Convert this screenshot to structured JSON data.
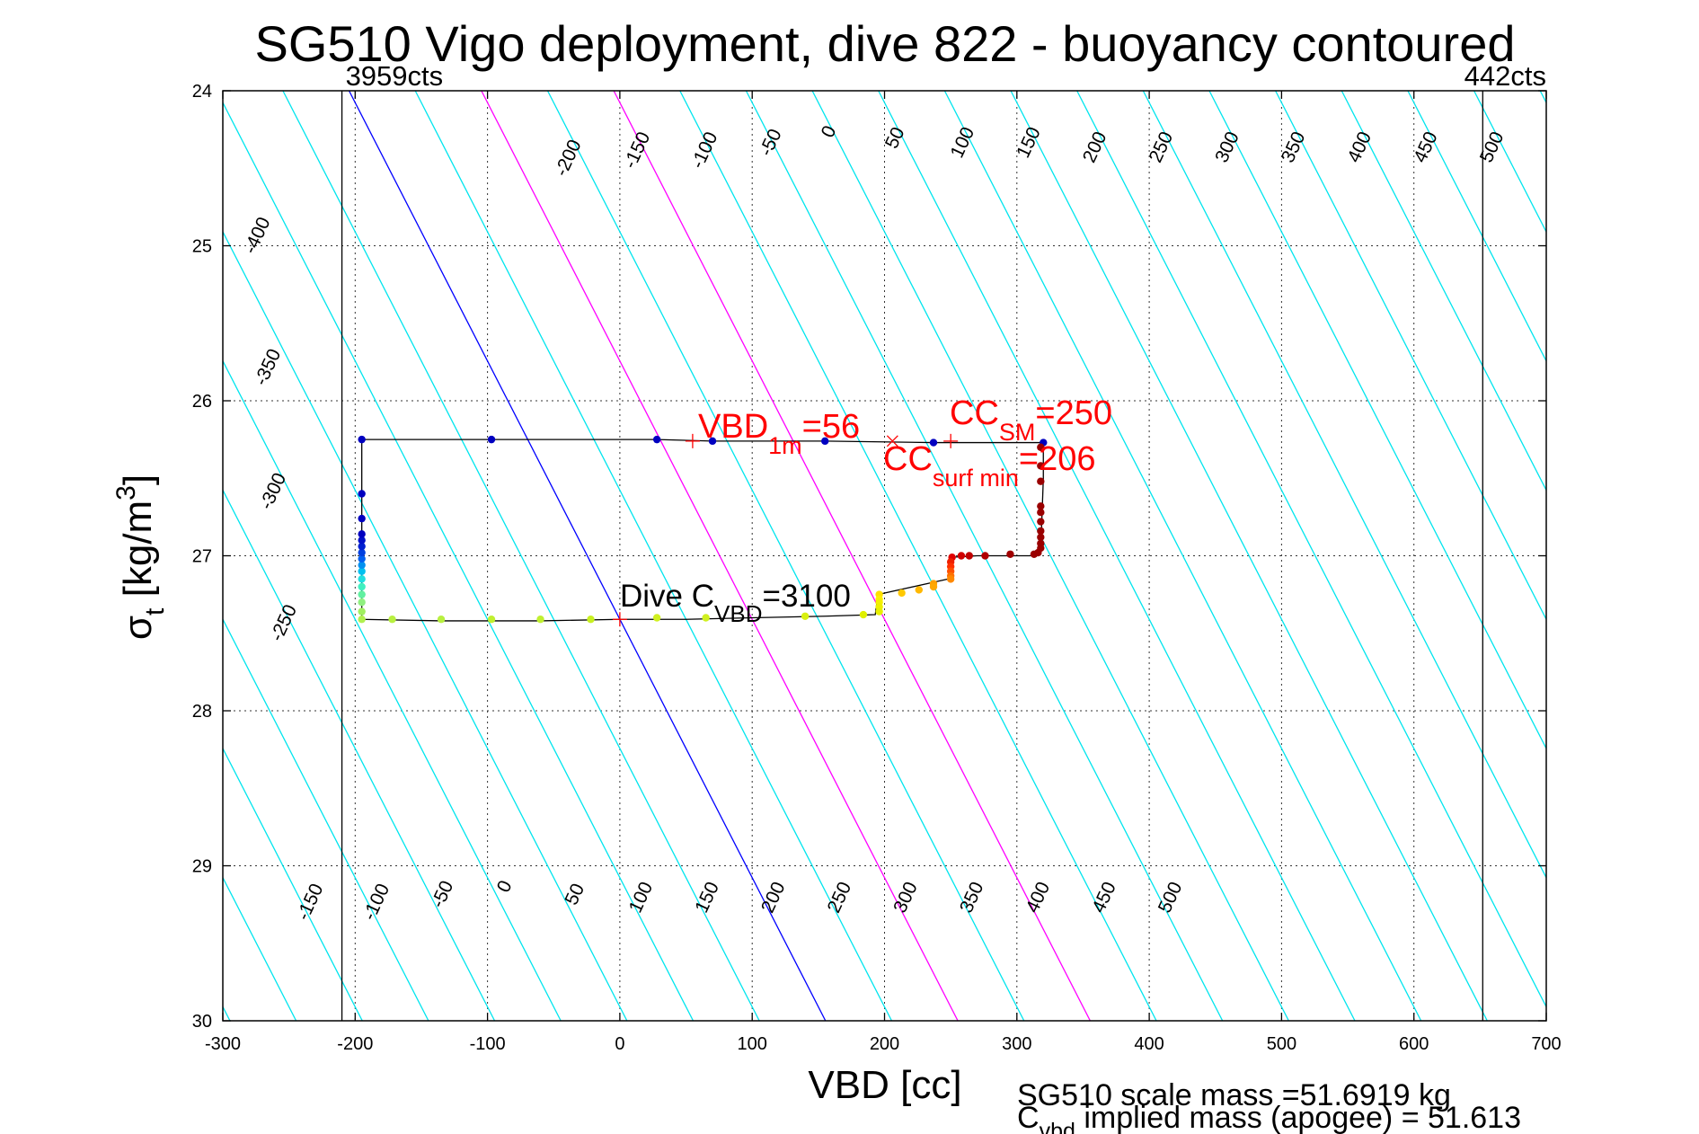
{
  "chart_data": {
    "type": "scatter",
    "title": "SG510 Vigo deployment, dive 822 - buoyancy contoured",
    "xlabel": "VBD [cc]",
    "ylabel_main": "σ",
    "ylabel_sub": "t",
    "ylabel_rest": " [kg/m",
    "ylabel_sup": "3",
    "ylabel_close": "]",
    "xlim": [
      -300,
      700
    ],
    "ylim": [
      24,
      30
    ],
    "y_reversed": true,
    "grid": true,
    "xticks": [
      -300,
      -200,
      -100,
      0,
      100,
      200,
      300,
      400,
      500,
      600,
      700
    ],
    "yticks": [
      24,
      25,
      26,
      27,
      28,
      29,
      30
    ],
    "contour_slope_cc_per_sigma": 60,
    "contours": {
      "levels": [
        -450,
        -400,
        -350,
        -300,
        -250,
        -200,
        -150,
        -100,
        -50,
        0,
        50,
        100,
        150,
        200,
        250,
        300,
        350,
        400,
        450,
        500,
        550,
        600,
        650,
        700,
        750,
        800,
        850,
        900,
        950,
        1000
      ],
      "zero_level_color": "#0000ff",
      "highlight_levels": [
        100,
        200
      ],
      "highlight_color": "#ff00ff",
      "default_color": "#00e5ee",
      "top_labels": [
        {
          "text": "-200",
          "x": -35,
          "y": 24.45
        },
        {
          "text": "-150",
          "x": 17,
          "y": 24.4
        },
        {
          "text": "-100",
          "x": 68,
          "y": 24.4
        },
        {
          "text": "-50",
          "x": 118,
          "y": 24.35
        },
        {
          "text": "0",
          "x": 162,
          "y": 24.28
        },
        {
          "text": "50",
          "x": 212,
          "y": 24.32
        },
        {
          "text": "100",
          "x": 263,
          "y": 24.35
        },
        {
          "text": "150",
          "x": 313,
          "y": 24.35
        },
        {
          "text": "200",
          "x": 363,
          "y": 24.38
        },
        {
          "text": "250",
          "x": 413,
          "y": 24.38
        },
        {
          "text": "300",
          "x": 463,
          "y": 24.38
        },
        {
          "text": "350",
          "x": 513,
          "y": 24.38
        },
        {
          "text": "400",
          "x": 563,
          "y": 24.38
        },
        {
          "text": "450",
          "x": 613,
          "y": 24.38
        },
        {
          "text": "500",
          "x": 663,
          "y": 24.38
        }
      ],
      "left_labels": [
        {
          "text": "-400",
          "x": -270,
          "y": 24.95
        },
        {
          "text": "-350",
          "x": -262,
          "y": 25.8
        },
        {
          "text": "-300",
          "x": -258,
          "y": 26.6
        },
        {
          "text": "-250",
          "x": -250,
          "y": 27.45
        }
      ],
      "bottom_labels": [
        {
          "text": "-150",
          "x": -230,
          "y": 29.25
        },
        {
          "text": "-100",
          "x": -180,
          "y": 29.25
        },
        {
          "text": "-50",
          "x": -130,
          "y": 29.2
        },
        {
          "text": "0",
          "x": -83,
          "y": 29.15
        },
        {
          "text": "50",
          "x": -30,
          "y": 29.2
        },
        {
          "text": "100",
          "x": 20,
          "y": 29.22
        },
        {
          "text": "150",
          "x": 70,
          "y": 29.22
        },
        {
          "text": "200",
          "x": 120,
          "y": 29.22
        },
        {
          "text": "250",
          "x": 170,
          "y": 29.22
        },
        {
          "text": "300",
          "x": 220,
          "y": 29.22
        },
        {
          "text": "350",
          "x": 270,
          "y": 29.22
        },
        {
          "text": "400",
          "x": 320,
          "y": 29.22
        },
        {
          "text": "450",
          "x": 370,
          "y": 29.22
        },
        {
          "text": "500",
          "x": 420,
          "y": 29.22
        }
      ]
    },
    "vertical_lines": [
      {
        "x": -210,
        "label": "3959cts",
        "label_x": -210,
        "label_anchor": "start"
      },
      {
        "x": 652,
        "label": "442cts",
        "label_x": 700,
        "label_anchor": "end"
      }
    ],
    "path": [
      [
        -195,
        26.25
      ],
      [
        -97,
        26.25
      ],
      [
        28,
        26.25
      ],
      [
        70,
        26.26
      ],
      [
        155,
        26.26
      ],
      [
        237,
        26.27
      ],
      [
        320,
        26.27
      ],
      [
        320,
        26.5
      ],
      [
        318,
        26.97
      ],
      [
        310,
        27.0
      ],
      [
        290,
        27.0
      ],
      [
        270,
        27.0
      ],
      [
        250,
        27.01
      ],
      [
        248,
        27.15
      ],
      [
        195,
        27.25
      ],
      [
        193,
        27.38
      ],
      [
        155,
        27.39
      ],
      [
        100,
        27.4
      ],
      [
        50,
        27.41
      ],
      [
        0,
        27.41
      ],
      [
        -60,
        27.42
      ],
      [
        -135,
        27.42
      ],
      [
        -195,
        27.41
      ],
      [
        -195,
        27.2
      ],
      [
        -195,
        26.9
      ],
      [
        -195,
        26.25
      ]
    ],
    "points": [
      {
        "x": -195,
        "y": 26.25,
        "c": "#0000c0"
      },
      {
        "x": -97,
        "y": 26.25,
        "c": "#0000c0"
      },
      {
        "x": 28,
        "y": 26.25,
        "c": "#0000c0"
      },
      {
        "x": 70,
        "y": 26.26,
        "c": "#0000c0"
      },
      {
        "x": 155,
        "y": 26.26,
        "c": "#0000c0"
      },
      {
        "x": 237,
        "y": 26.27,
        "c": "#0000c0"
      },
      {
        "x": 320,
        "y": 26.27,
        "c": "#0000c0"
      },
      {
        "x": 318,
        "y": 26.3,
        "c": "#9a0000"
      },
      {
        "x": 318,
        "y": 26.42,
        "c": "#9a0000"
      },
      {
        "x": 318,
        "y": 26.52,
        "c": "#9a0000"
      },
      {
        "x": 318,
        "y": 26.68,
        "c": "#9a0000"
      },
      {
        "x": 318,
        "y": 26.72,
        "c": "#9a0000"
      },
      {
        "x": 318,
        "y": 26.78,
        "c": "#9a0000"
      },
      {
        "x": 318,
        "y": 26.84,
        "c": "#9a0000"
      },
      {
        "x": 318,
        "y": 26.88,
        "c": "#9a0000"
      },
      {
        "x": 318,
        "y": 26.92,
        "c": "#9a0000"
      },
      {
        "x": 318,
        "y": 26.95,
        "c": "#9a0000"
      },
      {
        "x": 316,
        "y": 26.98,
        "c": "#9a0000"
      },
      {
        "x": 313,
        "y": 26.99,
        "c": "#9a0000"
      },
      {
        "x": 295,
        "y": 26.99,
        "c": "#a00000"
      },
      {
        "x": 276,
        "y": 27.0,
        "c": "#b00000"
      },
      {
        "x": 264,
        "y": 27.0,
        "c": "#c00000"
      },
      {
        "x": 258,
        "y": 27.0,
        "c": "#d00000"
      },
      {
        "x": 251,
        "y": 27.01,
        "c": "#e00000"
      },
      {
        "x": 250,
        "y": 27.04,
        "c": "#ee2000"
      },
      {
        "x": 250,
        "y": 27.07,
        "c": "#ff3000"
      },
      {
        "x": 250,
        "y": 27.1,
        "c": "#ff5000"
      },
      {
        "x": 250,
        "y": 27.13,
        "c": "#ff7000"
      },
      {
        "x": 250,
        "y": 27.15,
        "c": "#ff8800"
      },
      {
        "x": 237,
        "y": 27.18,
        "c": "#ffa000"
      },
      {
        "x": 237,
        "y": 27.2,
        "c": "#ffa800"
      },
      {
        "x": 226,
        "y": 27.22,
        "c": "#ffb800"
      },
      {
        "x": 213,
        "y": 27.24,
        "c": "#ffc800"
      },
      {
        "x": 196,
        "y": 27.25,
        "c": "#ffe000"
      },
      {
        "x": 196,
        "y": 27.28,
        "c": "#ffee00"
      },
      {
        "x": 196,
        "y": 27.3,
        "c": "#f4f000"
      },
      {
        "x": 196,
        "y": 27.33,
        "c": "#eef000"
      },
      {
        "x": 196,
        "y": 27.36,
        "c": "#e8f000"
      },
      {
        "x": 184,
        "y": 27.38,
        "c": "#e0f000"
      },
      {
        "x": 140,
        "y": 27.39,
        "c": "#d8f010"
      },
      {
        "x": 65,
        "y": 27.4,
        "c": "#d0f020"
      },
      {
        "x": 28,
        "y": 27.4,
        "c": "#d0f020"
      },
      {
        "x": -22,
        "y": 27.41,
        "c": "#c8f020"
      },
      {
        "x": -60,
        "y": 27.41,
        "c": "#c0f030"
      },
      {
        "x": -97,
        "y": 27.41,
        "c": "#c0f030"
      },
      {
        "x": -135,
        "y": 27.41,
        "c": "#b8f040"
      },
      {
        "x": -172,
        "y": 27.41,
        "c": "#b8f040"
      },
      {
        "x": -195,
        "y": 27.41,
        "c": "#b0f050"
      },
      {
        "x": -195,
        "y": 27.36,
        "c": "#a0f060"
      },
      {
        "x": -195,
        "y": 27.3,
        "c": "#90f080"
      },
      {
        "x": -195,
        "y": 27.25,
        "c": "#60f0a0"
      },
      {
        "x": -195,
        "y": 27.2,
        "c": "#40f0c0"
      },
      {
        "x": -195,
        "y": 27.15,
        "c": "#20e0e0"
      },
      {
        "x": -195,
        "y": 27.1,
        "c": "#00c0f0"
      },
      {
        "x": -195,
        "y": 27.06,
        "c": "#0090f0"
      },
      {
        "x": -195,
        "y": 27.02,
        "c": "#0060f0"
      },
      {
        "x": -195,
        "y": 26.98,
        "c": "#0040e0"
      },
      {
        "x": -195,
        "y": 26.94,
        "c": "#0020d0"
      },
      {
        "x": -195,
        "y": 26.9,
        "c": "#0010c8"
      },
      {
        "x": -195,
        "y": 26.86,
        "c": "#0000c0"
      },
      {
        "x": -195,
        "y": 26.76,
        "c": "#0000c0"
      },
      {
        "x": -195,
        "y": 26.6,
        "c": "#0000c0"
      }
    ],
    "plus_markers": [
      {
        "x": 55,
        "y": 26.26
      },
      {
        "x": 250,
        "y": 26.26
      },
      {
        "x": 0,
        "y": 27.41
      }
    ],
    "x_markers": [
      {
        "x": 206,
        "y": 26.26
      }
    ],
    "annotations": {
      "vbd1m": {
        "main": "VBD",
        "sub": "1m",
        "rest": "=56"
      },
      "ccsm": {
        "main": "CC",
        "sub": "SM",
        "rest": "=250"
      },
      "ccsurf": {
        "main": "CC",
        "sub": "surf min",
        "rest": "=206"
      },
      "divec": {
        "main": "Dive C",
        "sub": "VBD",
        "rest": "=3100"
      }
    },
    "footer": {
      "line1": "SG510 scale mass =51.6919 kg",
      "line2_main": "C",
      "line2_sub": "vbd",
      "line2_rest": " implied mass (apogee) = 51.613"
    }
  }
}
